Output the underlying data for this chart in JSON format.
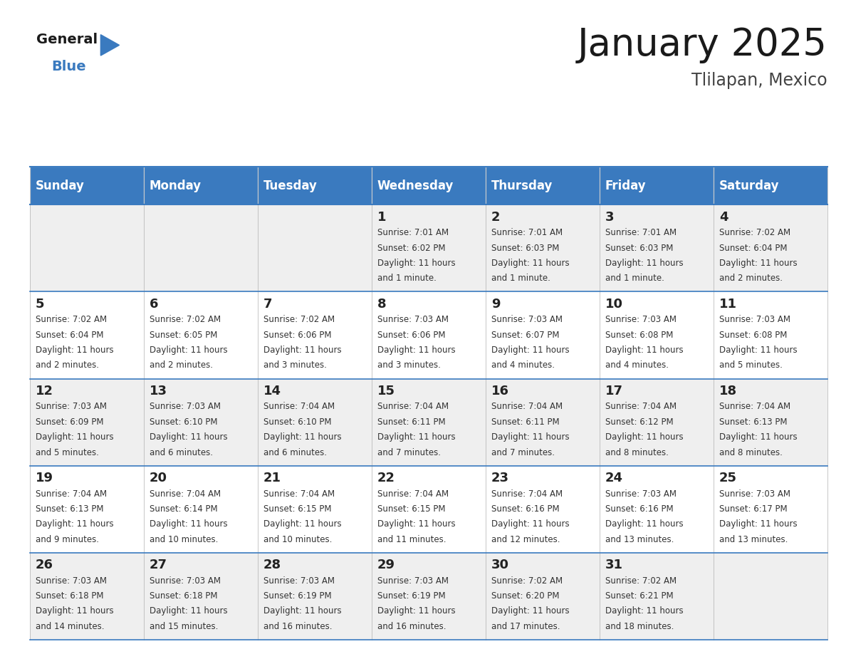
{
  "title": "January 2025",
  "subtitle": "Tlilapan, Mexico",
  "header_bg": "#3a7abf",
  "header_text": "#ffffff",
  "row_bg_odd": "#efefef",
  "row_bg_even": "#ffffff",
  "cell_border": "#3a7abf",
  "day_names": [
    "Sunday",
    "Monday",
    "Tuesday",
    "Wednesday",
    "Thursday",
    "Friday",
    "Saturday"
  ],
  "days": [
    {
      "day": 1,
      "col": 3,
      "row": 0,
      "sunrise": "7:01 AM",
      "sunset": "6:02 PM",
      "daylight": "11 hours and 1 minute."
    },
    {
      "day": 2,
      "col": 4,
      "row": 0,
      "sunrise": "7:01 AM",
      "sunset": "6:03 PM",
      "daylight": "11 hours and 1 minute."
    },
    {
      "day": 3,
      "col": 5,
      "row": 0,
      "sunrise": "7:01 AM",
      "sunset": "6:03 PM",
      "daylight": "11 hours and 1 minute."
    },
    {
      "day": 4,
      "col": 6,
      "row": 0,
      "sunrise": "7:02 AM",
      "sunset": "6:04 PM",
      "daylight": "11 hours and 2 minutes."
    },
    {
      "day": 5,
      "col": 0,
      "row": 1,
      "sunrise": "7:02 AM",
      "sunset": "6:04 PM",
      "daylight": "11 hours and 2 minutes."
    },
    {
      "day": 6,
      "col": 1,
      "row": 1,
      "sunrise": "7:02 AM",
      "sunset": "6:05 PM",
      "daylight": "11 hours and 2 minutes."
    },
    {
      "day": 7,
      "col": 2,
      "row": 1,
      "sunrise": "7:02 AM",
      "sunset": "6:06 PM",
      "daylight": "11 hours and 3 minutes."
    },
    {
      "day": 8,
      "col": 3,
      "row": 1,
      "sunrise": "7:03 AM",
      "sunset": "6:06 PM",
      "daylight": "11 hours and 3 minutes."
    },
    {
      "day": 9,
      "col": 4,
      "row": 1,
      "sunrise": "7:03 AM",
      "sunset": "6:07 PM",
      "daylight": "11 hours and 4 minutes."
    },
    {
      "day": 10,
      "col": 5,
      "row": 1,
      "sunrise": "7:03 AM",
      "sunset": "6:08 PM",
      "daylight": "11 hours and 4 minutes."
    },
    {
      "day": 11,
      "col": 6,
      "row": 1,
      "sunrise": "7:03 AM",
      "sunset": "6:08 PM",
      "daylight": "11 hours and 5 minutes."
    },
    {
      "day": 12,
      "col": 0,
      "row": 2,
      "sunrise": "7:03 AM",
      "sunset": "6:09 PM",
      "daylight": "11 hours and 5 minutes."
    },
    {
      "day": 13,
      "col": 1,
      "row": 2,
      "sunrise": "7:03 AM",
      "sunset": "6:10 PM",
      "daylight": "11 hours and 6 minutes."
    },
    {
      "day": 14,
      "col": 2,
      "row": 2,
      "sunrise": "7:04 AM",
      "sunset": "6:10 PM",
      "daylight": "11 hours and 6 minutes."
    },
    {
      "day": 15,
      "col": 3,
      "row": 2,
      "sunrise": "7:04 AM",
      "sunset": "6:11 PM",
      "daylight": "11 hours and 7 minutes."
    },
    {
      "day": 16,
      "col": 4,
      "row": 2,
      "sunrise": "7:04 AM",
      "sunset": "6:11 PM",
      "daylight": "11 hours and 7 minutes."
    },
    {
      "day": 17,
      "col": 5,
      "row": 2,
      "sunrise": "7:04 AM",
      "sunset": "6:12 PM",
      "daylight": "11 hours and 8 minutes."
    },
    {
      "day": 18,
      "col": 6,
      "row": 2,
      "sunrise": "7:04 AM",
      "sunset": "6:13 PM",
      "daylight": "11 hours and 8 minutes."
    },
    {
      "day": 19,
      "col": 0,
      "row": 3,
      "sunrise": "7:04 AM",
      "sunset": "6:13 PM",
      "daylight": "11 hours and 9 minutes."
    },
    {
      "day": 20,
      "col": 1,
      "row": 3,
      "sunrise": "7:04 AM",
      "sunset": "6:14 PM",
      "daylight": "11 hours and 10 minutes."
    },
    {
      "day": 21,
      "col": 2,
      "row": 3,
      "sunrise": "7:04 AM",
      "sunset": "6:15 PM",
      "daylight": "11 hours and 10 minutes."
    },
    {
      "day": 22,
      "col": 3,
      "row": 3,
      "sunrise": "7:04 AM",
      "sunset": "6:15 PM",
      "daylight": "11 hours and 11 minutes."
    },
    {
      "day": 23,
      "col": 4,
      "row": 3,
      "sunrise": "7:04 AM",
      "sunset": "6:16 PM",
      "daylight": "11 hours and 12 minutes."
    },
    {
      "day": 24,
      "col": 5,
      "row": 3,
      "sunrise": "7:03 AM",
      "sunset": "6:16 PM",
      "daylight": "11 hours and 13 minutes."
    },
    {
      "day": 25,
      "col": 6,
      "row": 3,
      "sunrise": "7:03 AM",
      "sunset": "6:17 PM",
      "daylight": "11 hours and 13 minutes."
    },
    {
      "day": 26,
      "col": 0,
      "row": 4,
      "sunrise": "7:03 AM",
      "sunset": "6:18 PM",
      "daylight": "11 hours and 14 minutes."
    },
    {
      "day": 27,
      "col": 1,
      "row": 4,
      "sunrise": "7:03 AM",
      "sunset": "6:18 PM",
      "daylight": "11 hours and 15 minutes."
    },
    {
      "day": 28,
      "col": 2,
      "row": 4,
      "sunrise": "7:03 AM",
      "sunset": "6:19 PM",
      "daylight": "11 hours and 16 minutes."
    },
    {
      "day": 29,
      "col": 3,
      "row": 4,
      "sunrise": "7:03 AM",
      "sunset": "6:19 PM",
      "daylight": "11 hours and 16 minutes."
    },
    {
      "day": 30,
      "col": 4,
      "row": 4,
      "sunrise": "7:02 AM",
      "sunset": "6:20 PM",
      "daylight": "11 hours and 17 minutes."
    },
    {
      "day": 31,
      "col": 5,
      "row": 4,
      "sunrise": "7:02 AM",
      "sunset": "6:21 PM",
      "daylight": "11 hours and 18 minutes."
    }
  ],
  "num_rows": 5,
  "num_cols": 7,
  "title_fontsize": 38,
  "subtitle_fontsize": 17,
  "header_fontsize": 12,
  "day_num_fontsize": 13,
  "cell_text_fontsize": 8.5
}
